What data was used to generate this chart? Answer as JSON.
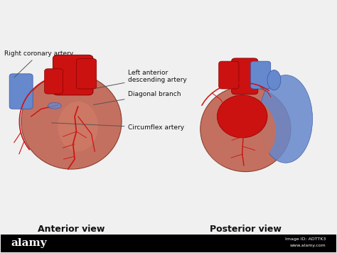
{
  "background_color": "#f0f0f0",
  "watermark_bg": "#000000",
  "title_left": "Anterior view",
  "title_right": "Posterior view",
  "title_fontsize": 9,
  "title_fontstyle": "bold",
  "heart_red": "#cc1111",
  "heart_dark_red": "#aa0000",
  "heart_body_color": "#c47060",
  "heart_body_light": "#d4806a",
  "artery_red": "#cc1111",
  "vein_blue": "#4466bb",
  "vein_blue_light": "#6688cc",
  "label_color": "#111111",
  "label_fontsize": 6.5,
  "watermark_text": "alamy",
  "watermark_id": "Image ID: ADTTK3",
  "watermark_url": "www.alamy.com"
}
